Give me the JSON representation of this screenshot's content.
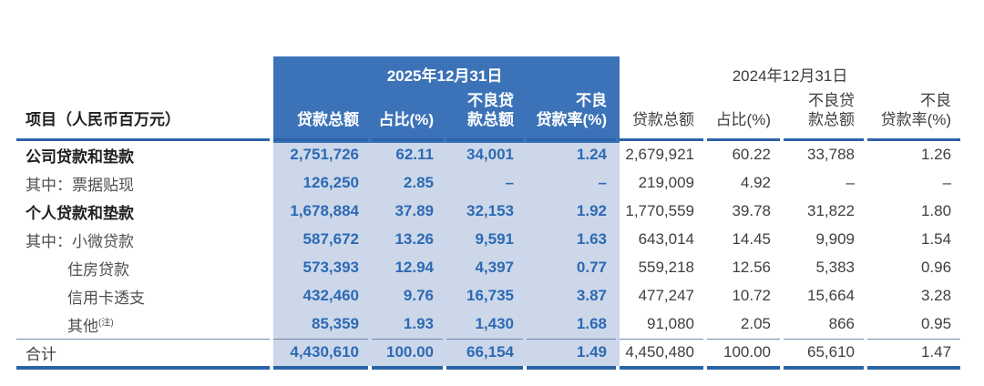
{
  "table": {
    "row_header": "项目（人民币百万元）",
    "periods": [
      {
        "label": "2025年12月31日",
        "highlight": true
      },
      {
        "label": "2024年12月31日",
        "highlight": false
      }
    ],
    "columns": [
      "贷款总额",
      "占比(%)",
      "不良贷\n款总额",
      "不良\n贷款率(%)"
    ],
    "rows": [
      {
        "label": "公司贷款和垫款",
        "bold": true,
        "indent": false,
        "y2025": [
          "2,751,726",
          "62.11",
          "34,001",
          "1.24"
        ],
        "y2024": [
          "2,679,921",
          "60.22",
          "33,788",
          "1.26"
        ]
      },
      {
        "label": "其中：票据贴现",
        "bold": false,
        "indent": false,
        "y2025": [
          "126,250",
          "2.85",
          "–",
          "–"
        ],
        "y2024": [
          "219,009",
          "4.92",
          "–",
          "–"
        ]
      },
      {
        "label": "个人贷款和垫款",
        "bold": true,
        "indent": false,
        "y2025": [
          "1,678,884",
          "37.89",
          "32,153",
          "1.92"
        ],
        "y2024": [
          "1,770,559",
          "39.78",
          "31,822",
          "1.80"
        ]
      },
      {
        "label": "其中：小微贷款",
        "bold": false,
        "indent": false,
        "y2025": [
          "587,672",
          "13.26",
          "9,591",
          "1.63"
        ],
        "y2024": [
          "643,014",
          "14.45",
          "9,909",
          "1.54"
        ]
      },
      {
        "label": "住房贷款",
        "bold": false,
        "indent": true,
        "y2025": [
          "573,393",
          "12.94",
          "4,397",
          "0.77"
        ],
        "y2024": [
          "559,218",
          "12.56",
          "5,383",
          "0.96"
        ]
      },
      {
        "label": "信用卡透支",
        "bold": false,
        "indent": true,
        "y2025": [
          "432,460",
          "9.76",
          "16,735",
          "3.87"
        ],
        "y2024": [
          "477,247",
          "10.72",
          "15,664",
          "3.28"
        ]
      },
      {
        "label": "其他",
        "note": "(注)",
        "bold": false,
        "indent": true,
        "y2025": [
          "85,359",
          "1.93",
          "1,430",
          "1.68"
        ],
        "y2024": [
          "91,080",
          "2.05",
          "866",
          "0.95"
        ]
      }
    ],
    "total": {
      "label": "合计",
      "y2025": [
        "4,430,610",
        "100.00",
        "66,154",
        "1.49"
      ],
      "y2024": [
        "4,450,480",
        "100.00",
        "65,610",
        "1.47"
      ]
    },
    "colors": {
      "header_blue": "#3c73b8",
      "band_blue": "#cdd7ea",
      "accent_text_blue": "#2c6ab3",
      "rule_blue": "#2b63a8"
    }
  }
}
